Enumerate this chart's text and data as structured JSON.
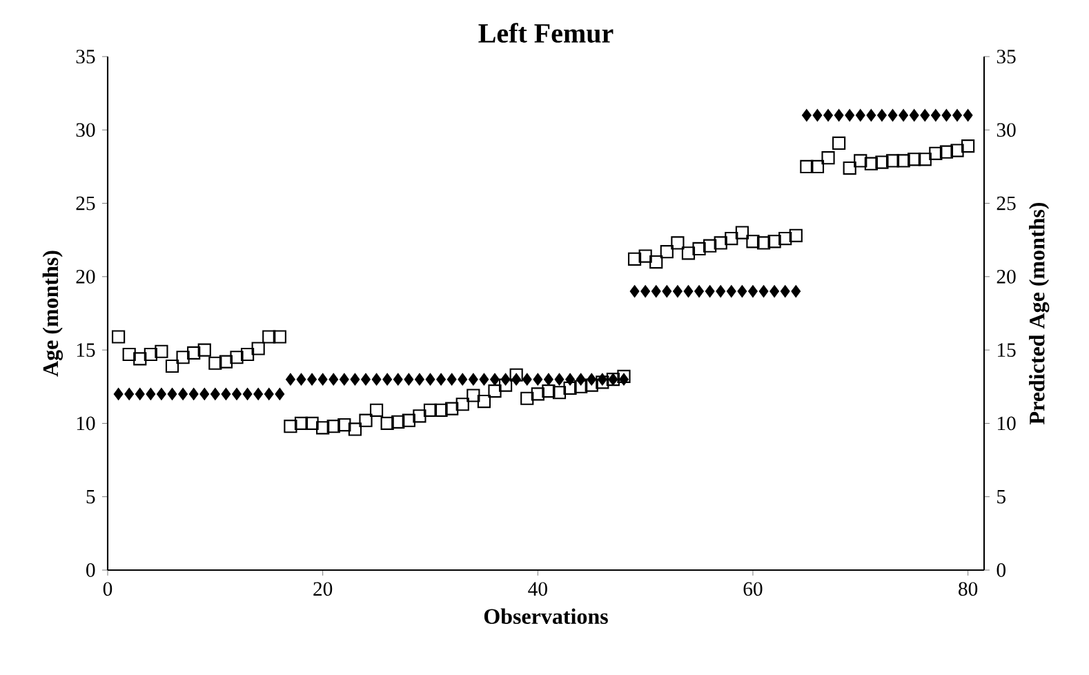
{
  "chart_data": {
    "type": "scatter",
    "title": "Left Femur",
    "xlabel": "Observations",
    "ylabel": "Age (months)",
    "y2label": "Predicted Age (months)",
    "x": [
      1,
      2,
      3,
      4,
      5,
      6,
      7,
      8,
      9,
      10,
      11,
      12,
      13,
      14,
      15,
      16,
      17,
      18,
      19,
      20,
      21,
      22,
      23,
      24,
      25,
      26,
      27,
      28,
      29,
      30,
      31,
      32,
      33,
      34,
      35,
      36,
      37,
      38,
      39,
      40,
      41,
      42,
      43,
      44,
      45,
      46,
      47,
      48,
      49,
      50,
      51,
      52,
      53,
      54,
      55,
      56,
      57,
      58,
      59,
      60,
      61,
      62,
      63,
      64,
      65,
      66,
      67,
      68,
      69,
      70,
      71,
      72,
      73,
      74,
      75,
      76,
      77,
      78,
      79,
      80
    ],
    "series": [
      {
        "color": "#000000",
        "marker": "square",
        "values": [
          15.9,
          14.7,
          14.4,
          14.7,
          14.9,
          13.9,
          14.5,
          14.8,
          15.0,
          14.1,
          14.2,
          14.5,
          14.7,
          15.1,
          15.9,
          15.9,
          9.8,
          10.0,
          10.0,
          9.7,
          9.8,
          9.9,
          9.6,
          10.2,
          10.9,
          10.0,
          10.1,
          10.2,
          10.5,
          10.9,
          10.9,
          11.0,
          11.3,
          11.9,
          11.5,
          12.2,
          12.6,
          13.3,
          11.7,
          12.0,
          12.2,
          12.1,
          12.4,
          12.5,
          12.6,
          12.8,
          13.0,
          13.2,
          21.2,
          21.4,
          21.0,
          21.7,
          22.3,
          21.6,
          21.9,
          22.1,
          22.3,
          22.6,
          23.0,
          22.4,
          22.3,
          22.4,
          22.6,
          22.8,
          27.5,
          27.5,
          28.1,
          29.1,
          27.4,
          27.9,
          27.7,
          27.8,
          27.9,
          27.9,
          28.0,
          28.0,
          28.4,
          28.5,
          28.6,
          28.9
        ]
      },
      {
        "color": "#000000",
        "marker": "diamond",
        "values": [
          12,
          12,
          12,
          12,
          12,
          12,
          12,
          12,
          12,
          12,
          12,
          12,
          12,
          12,
          12,
          12,
          13,
          13,
          13,
          13,
          13,
          13,
          13,
          13,
          13,
          13,
          13,
          13,
          13,
          13,
          13,
          13,
          13,
          13,
          13,
          13,
          13,
          13,
          13,
          13,
          13,
          13,
          13,
          13,
          13,
          13,
          13,
          13,
          19,
          19,
          19,
          19,
          19,
          19,
          19,
          19,
          19,
          19,
          19,
          19,
          19,
          19,
          19,
          19,
          31,
          31,
          31,
          31,
          31,
          31,
          31,
          31,
          31,
          31,
          31,
          31,
          31,
          31,
          31,
          31
        ]
      }
    ],
    "xlim": [
      0,
      81.5
    ],
    "xticks": [
      0,
      20,
      40,
      60,
      80
    ],
    "ylim": [
      0,
      35
    ],
    "yticks": [
      0,
      5,
      10,
      15,
      20,
      25,
      30,
      35
    ],
    "y2lim": [
      0,
      35
    ],
    "y2ticks": [
      0,
      5,
      10,
      15,
      20,
      25,
      30,
      35
    ],
    "grid": false,
    "legend": false
  }
}
